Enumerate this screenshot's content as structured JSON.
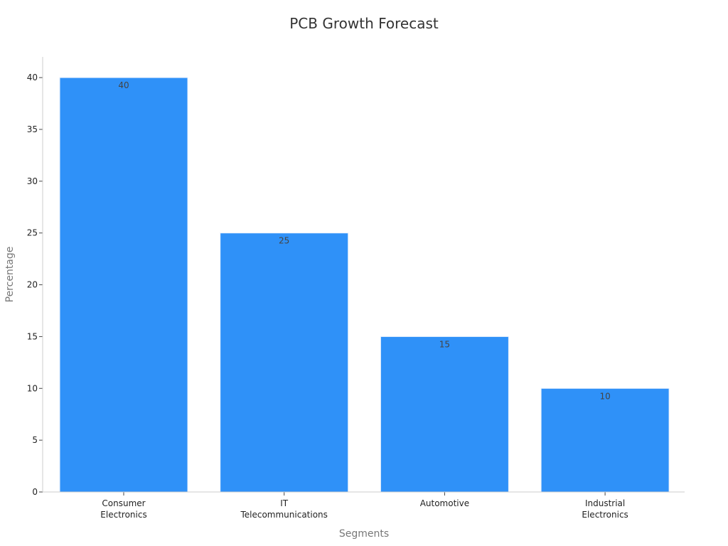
{
  "chart_data": {
    "type": "bar",
    "title": "PCB Growth Forecast",
    "xlabel": "Segments",
    "ylabel": "Percentage",
    "categories": [
      [
        "Consumer",
        "Electronics"
      ],
      [
        "IT",
        "Telecommunications"
      ],
      [
        "Automotive"
      ],
      [
        "Industrial",
        "Electronics"
      ]
    ],
    "values": [
      40,
      25,
      15,
      10
    ],
    "ylim": [
      0,
      42
    ],
    "yticks": [
      0,
      5,
      10,
      15,
      20,
      25,
      30,
      35,
      40
    ],
    "grid": false,
    "bar_color": "#2f91f8",
    "bar_edge_color": "#e8f1fd"
  }
}
